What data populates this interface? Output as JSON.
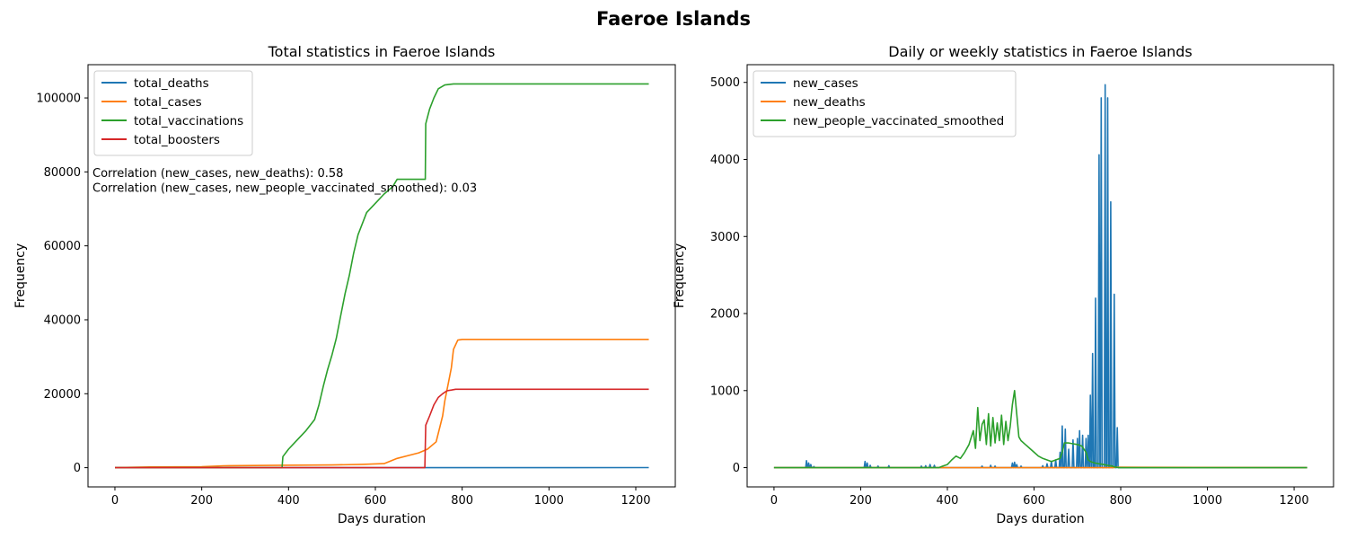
{
  "suptitle": "Faeroe Islands",
  "chart_data": [
    {
      "type": "line",
      "title": "Total statistics in Faeroe Islands",
      "xlabel": "Days duration",
      "ylabel": "Frequency",
      "xlim": [
        -62,
        1291
      ],
      "ylim": [
        -5200,
        109000
      ],
      "xticks": [
        0,
        200,
        400,
        600,
        800,
        1000,
        1200
      ],
      "yticks": [
        0,
        20000,
        40000,
        60000,
        80000,
        100000
      ],
      "legend_position": "upper left",
      "annotations": [
        "Correlation (new_cases, new_deaths): 0.58",
        "Correlation (new_cases, new_people_vaccinated_smoothed): 0.03"
      ],
      "series": [
        {
          "name": "total_deaths",
          "color": "#1f77b4",
          "x": [
            0,
            700,
            720,
            1230
          ],
          "y": [
            0,
            0,
            0,
            28
          ]
        },
        {
          "name": "total_cases",
          "color": "#ff7f0e",
          "x": [
            0,
            80,
            200,
            250,
            380,
            500,
            570,
            620,
            650,
            700,
            720,
            740,
            755,
            760,
            770,
            775,
            780,
            790,
            800,
            1230
          ],
          "y": [
            0,
            200,
            260,
            500,
            650,
            720,
            900,
            1100,
            2500,
            4000,
            5000,
            7000,
            14000,
            18000,
            24000,
            27000,
            32000,
            34500,
            34700,
            34700
          ]
        },
        {
          "name": "total_vaccinations",
          "color": "#2ca02c",
          "x": [
            0,
            385,
            387,
            400,
            420,
            440,
            460,
            470,
            480,
            490,
            500,
            510,
            520,
            530,
            540,
            550,
            560,
            580,
            600,
            620,
            640,
            650,
            660,
            680,
            715,
            716,
            725,
            735,
            745,
            760,
            780,
            800,
            1230
          ],
          "y": [
            0,
            0,
            3000,
            5000,
            7500,
            10000,
            13000,
            17000,
            22000,
            26500,
            30500,
            35000,
            41000,
            47000,
            52000,
            58000,
            63000,
            69000,
            71500,
            74000,
            76000,
            78000,
            78000,
            78000,
            78000,
            93000,
            97000,
            100000,
            102500,
            103500,
            103800,
            103800,
            103800
          ]
        },
        {
          "name": "total_boosters",
          "color": "#d62728",
          "x": [
            0,
            714,
            716,
            725,
            735,
            745,
            755,
            765,
            775,
            785,
            800,
            1230
          ],
          "y": [
            0,
            0,
            11500,
            14000,
            17000,
            19000,
            20000,
            20800,
            21000,
            21200,
            21200,
            21200
          ]
        }
      ]
    },
    {
      "type": "line",
      "title": "Daily or weekly statistics in Faeroe Islands",
      "xlabel": "Days duration",
      "ylabel": "Frequency",
      "xlim": [
        -62,
        1291
      ],
      "ylim": [
        -250,
        5230
      ],
      "xticks": [
        0,
        200,
        400,
        600,
        800,
        1000,
        1200
      ],
      "yticks": [
        0,
        1000,
        2000,
        3000,
        4000,
        5000
      ],
      "legend_position": "upper left",
      "series": [
        {
          "name": "new_cases",
          "color": "#1f77b4",
          "spikes": [
            [
              75,
              90
            ],
            [
              80,
              60
            ],
            [
              85,
              40
            ],
            [
              92,
              15
            ],
            [
              210,
              80
            ],
            [
              215,
              60
            ],
            [
              222,
              30
            ],
            [
              240,
              20
            ],
            [
              265,
              25
            ],
            [
              340,
              20
            ],
            [
              350,
              25
            ],
            [
              360,
              40
            ],
            [
              370,
              30
            ],
            [
              480,
              20
            ],
            [
              500,
              30
            ],
            [
              510,
              20
            ],
            [
              550,
              60
            ],
            [
              555,
              70
            ],
            [
              560,
              40
            ],
            [
              570,
              20
            ],
            [
              620,
              25
            ],
            [
              630,
              50
            ],
            [
              640,
              80
            ],
            [
              650,
              100
            ],
            [
              660,
              200
            ],
            [
              665,
              540
            ],
            [
              672,
              500
            ],
            [
              680,
              240
            ],
            [
              690,
              360
            ],
            [
              700,
              380
            ],
            [
              705,
              480
            ],
            [
              712,
              420
            ],
            [
              720,
              380
            ],
            [
              725,
              420
            ],
            [
              730,
              940
            ],
            [
              735,
              1480
            ],
            [
              742,
              2200
            ],
            [
              750,
              4060
            ],
            [
              755,
              4800
            ],
            [
              764,
              4970
            ],
            [
              770,
              4800
            ],
            [
              777,
              3450
            ],
            [
              785,
              2250
            ],
            [
              792,
              520
            ]
          ]
        },
        {
          "name": "new_deaths",
          "color": "#ff7f0e",
          "x": [
            0,
            782,
            790,
            1230
          ],
          "y": [
            0,
            0,
            5,
            0
          ]
        },
        {
          "name": "new_people_vaccinated_smoothed",
          "color": "#2ca02c",
          "x": [
            0,
            380,
            390,
            400,
            410,
            420,
            430,
            440,
            450,
            460,
            465,
            470,
            475,
            480,
            485,
            490,
            495,
            500,
            505,
            510,
            515,
            520,
            525,
            530,
            535,
            540,
            545,
            550,
            555,
            560,
            565,
            570,
            580,
            590,
            600,
            610,
            620,
            630,
            640,
            650,
            660,
            665,
            670,
            680,
            690,
            700,
            710,
            720,
            725,
            730,
            740,
            750,
            760,
            770,
            780,
            785,
            790,
            795,
            800,
            1230
          ],
          "y": [
            0,
            0,
            20,
            40,
            100,
            150,
            120,
            200,
            300,
            480,
            250,
            780,
            350,
            560,
            620,
            300,
            700,
            280,
            650,
            320,
            580,
            350,
            680,
            300,
            600,
            350,
            540,
            820,
            1000,
            700,
            400,
            350,
            300,
            250,
            200,
            150,
            120,
            100,
            80,
            100,
            120,
            200,
            320,
            320,
            310,
            300,
            280,
            200,
            100,
            80,
            60,
            50,
            40,
            30,
            20,
            10,
            5,
            0,
            0,
            0
          ]
        }
      ]
    }
  ]
}
